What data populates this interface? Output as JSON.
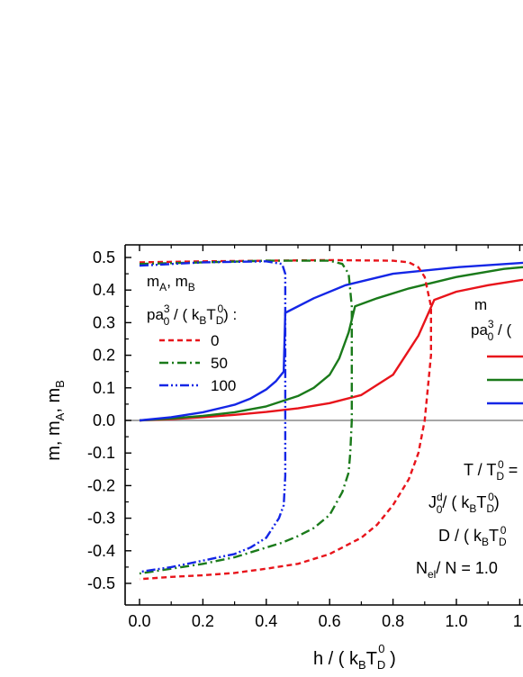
{
  "chart_data": {
    "type": "line",
    "xlabel": "h/(k_B T_D^0)",
    "ylabel": "m, m_A, m_B",
    "xlim": [
      -0.1,
      1.32
    ],
    "ylim": [
      -0.53,
      0.53
    ],
    "x_ticks": [
      "0.0",
      "0.2",
      "0.4",
      "0.6",
      "0.8",
      "1.0",
      "1."
    ],
    "y_ticks": [
      "-0.5",
      "-0.4",
      "-0.3",
      "-0.2",
      "-0.1",
      "0.0",
      "0.1",
      "0.2",
      "0.3",
      "0.4",
      "0.5"
    ],
    "colors": {
      "p0": "#e8141b",
      "p50": "#1a7a1a",
      "p100": "#1426e6",
      "zero_line": "#888888"
    },
    "legend_left": {
      "title_line1": "m_A, m_B",
      "title_line2": "pa_0^3/(k_B T_D^0):",
      "entries": [
        {
          "label": "0",
          "color": "#e8141b",
          "style": "dash"
        },
        {
          "label": "50",
          "color": "#1a7a1a",
          "style": "dashdot"
        },
        {
          "label": "100",
          "color": "#1426e6",
          "style": "dashdotdot"
        }
      ]
    },
    "legend_right": {
      "title_line1": "m",
      "title_line2": "pa_0^3/("
    },
    "annotations": [
      "T/T_D^0 =",
      "J_0^d/(k_B T_D^0)",
      "D/(k_B T_D",
      "N_el/N = 1.0"
    ],
    "series": [
      {
        "color": "#e8141b",
        "style": "solid",
        "x": [
          0.0,
          0.1,
          0.2,
          0.3,
          0.4,
          0.5,
          0.6,
          0.7,
          0.8,
          0.88,
          0.93,
          1.0,
          1.1,
          1.2,
          1.32
        ],
        "y": [
          0.0,
          0.004,
          0.01,
          0.017,
          0.026,
          0.037,
          0.053,
          0.078,
          0.14,
          0.26,
          0.37,
          0.395,
          0.415,
          0.43,
          0.445
        ]
      },
      {
        "color": "#1a7a1a",
        "style": "solid",
        "x": [
          0.0,
          0.1,
          0.2,
          0.3,
          0.4,
          0.5,
          0.55,
          0.6,
          0.63,
          0.66,
          0.68,
          0.75,
          0.85,
          1.0,
          1.15,
          1.32
        ],
        "y": [
          0.0,
          0.006,
          0.014,
          0.025,
          0.043,
          0.075,
          0.1,
          0.14,
          0.19,
          0.27,
          0.35,
          0.375,
          0.405,
          0.44,
          0.465,
          0.48
        ]
      },
      {
        "color": "#1426e6",
        "style": "solid",
        "x": [
          0.0,
          0.1,
          0.2,
          0.3,
          0.35,
          0.4,
          0.43,
          0.455,
          0.46,
          0.55,
          0.65,
          0.8,
          1.0,
          1.2,
          1.32
        ],
        "y": [
          0.0,
          0.01,
          0.025,
          0.048,
          0.067,
          0.095,
          0.12,
          0.15,
          0.33,
          0.375,
          0.415,
          0.45,
          0.47,
          0.483,
          0.49
        ]
      },
      {
        "color": "#e8141b",
        "style": "dash",
        "x": [
          0.0,
          0.2,
          0.4,
          0.6,
          0.8,
          0.85,
          0.88,
          0.9,
          0.92,
          0.92,
          0.9,
          0.88,
          0.85,
          0.8,
          0.75,
          0.7,
          0.6,
          0.5,
          0.4,
          0.3,
          0.2,
          0.1,
          0.0
        ],
        "y": [
          0.485,
          0.488,
          0.49,
          0.492,
          0.49,
          0.485,
          0.47,
          0.44,
          0.35,
          0.2,
          0.0,
          -0.1,
          -0.18,
          -0.26,
          -0.32,
          -0.36,
          -0.41,
          -0.44,
          -0.455,
          -0.468,
          -0.475,
          -0.48,
          -0.487
        ]
      },
      {
        "color": "#1a7a1a",
        "style": "dashdot",
        "x": [
          0.0,
          0.2,
          0.4,
          0.6,
          0.64,
          0.66,
          0.67,
          0.67,
          0.665,
          0.66,
          0.64,
          0.6,
          0.55,
          0.5,
          0.45,
          0.4,
          0.3,
          0.2,
          0.1,
          0.0
        ],
        "y": [
          0.48,
          0.485,
          0.49,
          0.49,
          0.48,
          0.45,
          0.35,
          0.0,
          -0.1,
          -0.16,
          -0.22,
          -0.29,
          -0.33,
          -0.355,
          -0.375,
          -0.39,
          -0.42,
          -0.44,
          -0.455,
          -0.47
        ]
      },
      {
        "color": "#1426e6",
        "style": "dashdotdot",
        "x": [
          0.0,
          0.2,
          0.4,
          0.45,
          0.46,
          0.46,
          0.455,
          0.44,
          0.42,
          0.4,
          0.35,
          0.3,
          0.2,
          0.1,
          0.0
        ],
        "y": [
          0.475,
          0.485,
          0.488,
          0.48,
          0.45,
          -0.17,
          -0.26,
          -0.3,
          -0.33,
          -0.36,
          -0.39,
          -0.41,
          -0.43,
          -0.45,
          -0.465
        ]
      }
    ]
  }
}
